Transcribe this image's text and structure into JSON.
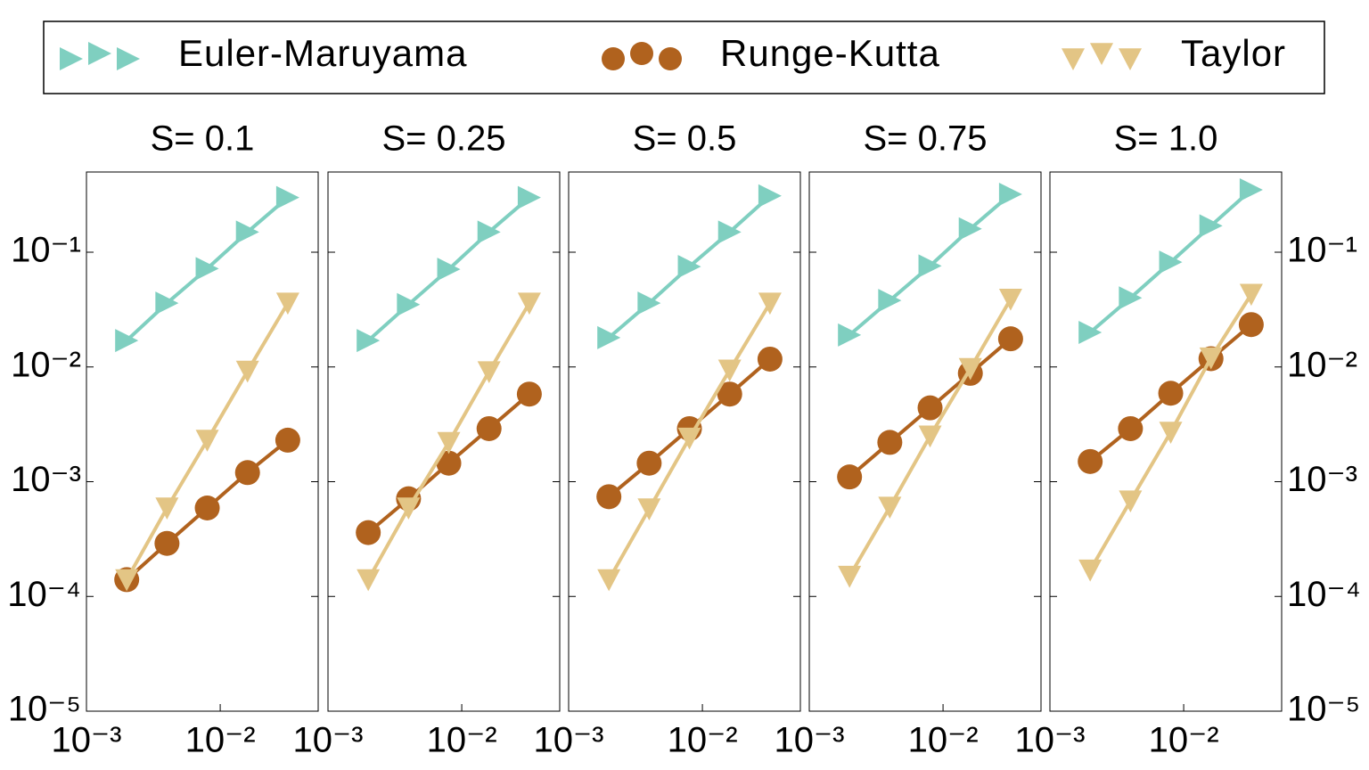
{
  "chart_data": [
    {
      "type": "line",
      "title": "S= 0.1",
      "log_x": true,
      "log_y": true,
      "yaxis_side": "left",
      "x": [
        0.002,
        0.004,
        0.008,
        0.016,
        0.032
      ],
      "xlim": [
        0.001,
        0.054
      ],
      "xticks": [
        {
          "value": 0.001,
          "label": "10⁻³"
        },
        {
          "value": 0.01,
          "label": "10⁻²"
        }
      ],
      "ylim": [
        1e-05,
        0.5
      ],
      "yticks": [
        {
          "value": 0.1,
          "label": "10⁻¹"
        },
        {
          "value": 0.01,
          "label": "10⁻²"
        },
        {
          "value": 0.001,
          "label": "10⁻³"
        },
        {
          "value": 0.0001,
          "label": "10⁻⁴"
        },
        {
          "value": 1e-05,
          "label": "10⁻⁵"
        }
      ],
      "series": [
        {
          "name": "Euler-Maruyama",
          "color": "#7fcfc0",
          "marker": "triangle-right",
          "values": [
            0.017,
            0.036,
            0.072,
            0.15,
            0.3
          ]
        },
        {
          "name": "Runge-Kutta",
          "color": "#b0621e",
          "marker": "circle",
          "values": [
            0.00014,
            0.00029,
            0.00059,
            0.0012,
            0.0023
          ]
        },
        {
          "name": "Taylor",
          "color": "#e3c585",
          "marker": "triangle-down",
          "values": [
            0.00014,
            0.00059,
            0.0023,
            0.0092,
            0.036
          ]
        }
      ]
    },
    {
      "type": "line",
      "title": "S= 0.25",
      "log_x": true,
      "log_y": true,
      "x": [
        0.002,
        0.004,
        0.008,
        0.016,
        0.032
      ],
      "xlim": [
        0.001,
        0.054
      ],
      "xticks": [
        {
          "value": 0.001,
          "label": "10⁻³"
        },
        {
          "value": 0.01,
          "label": "10⁻²"
        }
      ],
      "ylim": [
        1e-05,
        0.5
      ],
      "yticks": [
        0.1,
        0.01,
        0.001,
        0.0001,
        1e-05
      ],
      "series": [
        {
          "name": "Euler-Maruyama",
          "color": "#7fcfc0",
          "marker": "triangle-right",
          "values": [
            0.017,
            0.035,
            0.071,
            0.15,
            0.3
          ]
        },
        {
          "name": "Runge-Kutta",
          "color": "#b0621e",
          "marker": "circle",
          "values": [
            0.00036,
            0.00071,
            0.00145,
            0.0029,
            0.0058
          ]
        },
        {
          "name": "Taylor",
          "color": "#e3c585",
          "marker": "triangle-down",
          "values": [
            0.00014,
            0.00059,
            0.0022,
            0.0091,
            0.036
          ]
        }
      ]
    },
    {
      "type": "line",
      "title": "S= 0.5",
      "log_x": true,
      "log_y": true,
      "x": [
        0.002,
        0.004,
        0.008,
        0.016,
        0.032
      ],
      "xlim": [
        0.001,
        0.054
      ],
      "xticks": [
        {
          "value": 0.001,
          "label": "10⁻³"
        },
        {
          "value": 0.01,
          "label": "10⁻²"
        }
      ],
      "ylim": [
        1e-05,
        0.5
      ],
      "yticks": [
        0.1,
        0.01,
        0.001,
        0.0001,
        1e-05
      ],
      "series": [
        {
          "name": "Euler-Maruyama",
          "color": "#7fcfc0",
          "marker": "triangle-right",
          "values": [
            0.018,
            0.036,
            0.075,
            0.15,
            0.31
          ]
        },
        {
          "name": "Runge-Kutta",
          "color": "#b0621e",
          "marker": "circle",
          "values": [
            0.00074,
            0.00145,
            0.0029,
            0.0058,
            0.0117
          ]
        },
        {
          "name": "Taylor",
          "color": "#e3c585",
          "marker": "triangle-down",
          "values": [
            0.00014,
            0.00058,
            0.0024,
            0.0094,
            0.036
          ]
        }
      ]
    },
    {
      "type": "line",
      "title": "S= 0.75",
      "log_x": true,
      "log_y": true,
      "x": [
        0.002,
        0.004,
        0.008,
        0.016,
        0.032
      ],
      "xlim": [
        0.001,
        0.054
      ],
      "xticks": [
        {
          "value": 0.001,
          "label": "10⁻³"
        },
        {
          "value": 0.01,
          "label": "10⁻²"
        }
      ],
      "ylim": [
        1e-05,
        0.5
      ],
      "yticks": [
        0.1,
        0.01,
        0.001,
        0.0001,
        1e-05
      ],
      "series": [
        {
          "name": "Euler-Maruyama",
          "color": "#7fcfc0",
          "marker": "triangle-right",
          "values": [
            0.019,
            0.038,
            0.076,
            0.16,
            0.32
          ]
        },
        {
          "name": "Runge-Kutta",
          "color": "#b0621e",
          "marker": "circle",
          "values": [
            0.0011,
            0.0022,
            0.0044,
            0.0088,
            0.0176
          ]
        },
        {
          "name": "Taylor",
          "color": "#e3c585",
          "marker": "triangle-down",
          "values": [
            0.00015,
            0.0006,
            0.0025,
            0.0097,
            0.039
          ]
        }
      ]
    },
    {
      "type": "line",
      "title": "S= 1.0",
      "log_x": true,
      "log_y": true,
      "yaxis_side": "right",
      "x": [
        0.002,
        0.004,
        0.008,
        0.016,
        0.032
      ],
      "xlim": [
        0.001,
        0.054
      ],
      "xticks": [
        {
          "value": 0.001,
          "label": "10⁻³"
        },
        {
          "value": 0.01,
          "label": "10⁻²"
        }
      ],
      "ylim": [
        1e-05,
        0.5
      ],
      "yticks": [
        {
          "value": 0.1,
          "label": "10⁻¹"
        },
        {
          "value": 0.01,
          "label": "10⁻²"
        },
        {
          "value": 0.001,
          "label": "10⁻³"
        },
        {
          "value": 0.0001,
          "label": "10⁻⁴"
        },
        {
          "value": 1e-05,
          "label": "10⁻⁵"
        }
      ],
      "series": [
        {
          "name": "Euler-Maruyama",
          "color": "#7fcfc0",
          "marker": "triangle-right",
          "values": [
            0.02,
            0.04,
            0.082,
            0.17,
            0.35
          ]
        },
        {
          "name": "Runge-Kutta",
          "color": "#b0621e",
          "marker": "circle",
          "values": [
            0.0015,
            0.0029,
            0.0059,
            0.0118,
            0.0234
          ]
        },
        {
          "name": "Taylor",
          "color": "#e3c585",
          "marker": "triangle-down",
          "values": [
            0.00017,
            0.00068,
            0.0027,
            0.012,
            0.043
          ]
        }
      ]
    }
  ]
}
